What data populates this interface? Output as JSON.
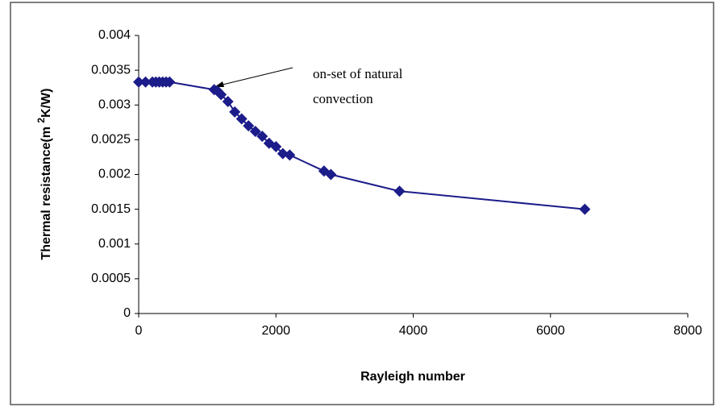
{
  "chart_data": {
    "type": "line",
    "x_label": "Rayleigh number",
    "y_label": {
      "before": "Thermal resistance(m ",
      "sup": "2",
      "after": "K/W)"
    },
    "annotation": [
      "on-set of natural",
      "convection"
    ],
    "series": [
      {
        "name": "Thermal resistance",
        "color": "#1c1c8a",
        "x": [
          0,
          100,
          200,
          250,
          300,
          350,
          400,
          450,
          1100,
          1150,
          1200,
          1300,
          1400,
          1500,
          1600,
          1700,
          1800,
          1900,
          2000,
          2100,
          2200,
          2700,
          2800,
          3800,
          6500
        ],
        "values": [
          0.00333,
          0.00333,
          0.00333,
          0.00333,
          0.00333,
          0.00333,
          0.00333,
          0.00333,
          0.00322,
          0.0032,
          0.00315,
          0.00305,
          0.0029,
          0.0028,
          0.0027,
          0.00262,
          0.00255,
          0.00245,
          0.0024,
          0.0023,
          0.00228,
          0.00205,
          0.002,
          0.00176,
          0.0015
        ]
      }
    ],
    "xlim": [
      0,
      8000
    ],
    "xticks": [
      0,
      2000,
      4000,
      6000,
      8000
    ],
    "ylim": [
      0,
      0.004
    ],
    "yticks": [
      0,
      0.0005,
      0.001,
      0.0015,
      0.002,
      0.0025,
      0.003,
      0.0035,
      0.004
    ],
    "grid": false
  }
}
